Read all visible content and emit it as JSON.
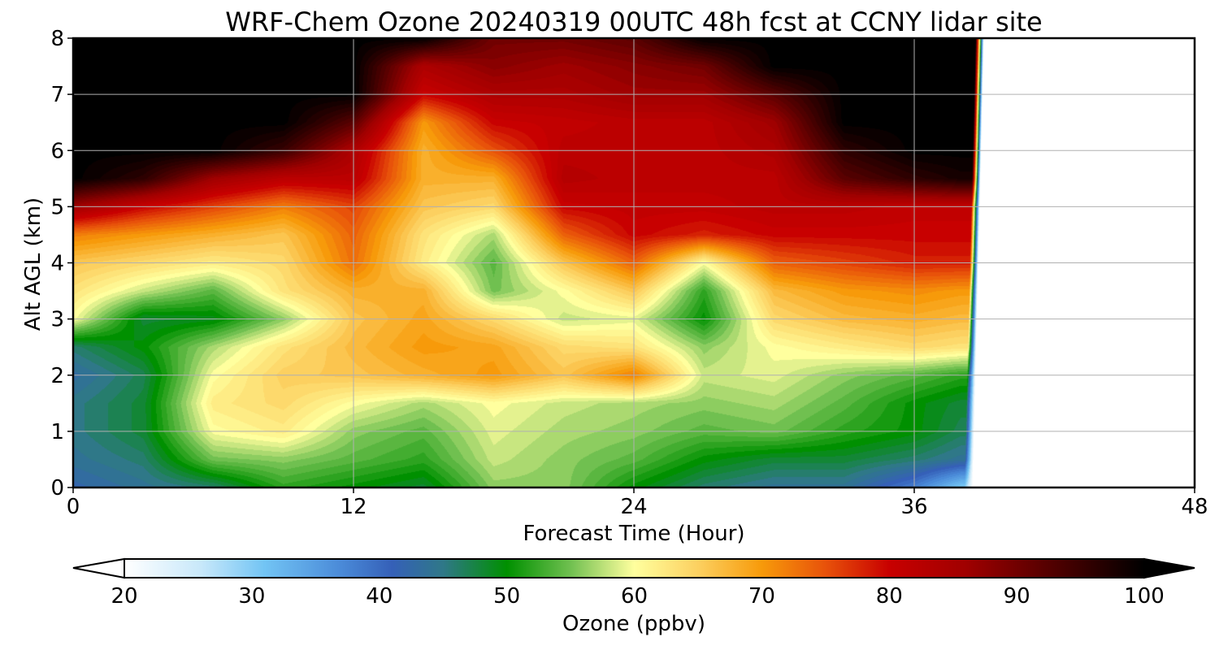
{
  "chart_data": {
    "type": "heatmap",
    "title": "WRF-Chem Ozone  20240319 00UTC 48h fcst at CCNY lidar site",
    "xlabel": "Forecast Time (Hour)",
    "ylabel": "Alt AGL (km)",
    "xlim": [
      0,
      48
    ],
    "ylim": [
      0,
      8
    ],
    "xticks": [
      0,
      12,
      24,
      36,
      48
    ],
    "yticks": [
      0,
      1,
      2,
      3,
      4,
      5,
      6,
      7,
      8
    ],
    "grid": true,
    "data_end_hour": 38.5,
    "x": [
      0,
      3,
      6,
      9,
      12,
      15,
      18,
      21,
      24,
      27,
      30,
      33,
      36,
      38
    ],
    "y": [
      0,
      0.5,
      1,
      1.5,
      2,
      2.5,
      3,
      3.5,
      4,
      4.5,
      5,
      5.5,
      6,
      6.5,
      7,
      7.5,
      8
    ],
    "z": [
      [
        42,
        44,
        46,
        52,
        50,
        48,
        56,
        56,
        50,
        46,
        44,
        44,
        38,
        30
      ],
      [
        44,
        46,
        55,
        56,
        54,
        52,
        58,
        56,
        54,
        50,
        48,
        48,
        46,
        44
      ],
      [
        45,
        48,
        60,
        62,
        56,
        54,
        59,
        57,
        56,
        54,
        55,
        52,
        50,
        47
      ],
      [
        45,
        48,
        62,
        64,
        60,
        57,
        60,
        58,
        57,
        56,
        57,
        54,
        50,
        48
      ],
      [
        43,
        47,
        60,
        65,
        66,
        68,
        70,
        66,
        72,
        58,
        59,
        56,
        54,
        52
      ],
      [
        46,
        50,
        57,
        63,
        67,
        70,
        69,
        64,
        63,
        56,
        60,
        62,
        64,
        63
      ],
      [
        60,
        48,
        49,
        56,
        66,
        69,
        64,
        58,
        59,
        50,
        64,
        67,
        68,
        67
      ],
      [
        63,
        58,
        54,
        63,
        68,
        68,
        55,
        60,
        66,
        52,
        67,
        70,
        71,
        70
      ],
      [
        66,
        64,
        62,
        64,
        73,
        62,
        54,
        66,
        74,
        60,
        74,
        76,
        78,
        78
      ],
      [
        72,
        70,
        68,
        66,
        74,
        63,
        57,
        74,
        80,
        78,
        80,
        80,
        80,
        80
      ],
      [
        86,
        80,
        76,
        72,
        76,
        66,
        64,
        80,
        81,
        81,
        82,
        82,
        81,
        81
      ],
      [
        100,
        96,
        86,
        82,
        82,
        68,
        68,
        83,
        82,
        82,
        82,
        92,
        96,
        98
      ],
      [
        100,
        100,
        100,
        95,
        84,
        68,
        75,
        82,
        82,
        82,
        84,
        96,
        100,
        100
      ],
      [
        100,
        100,
        100,
        100,
        92,
        70,
        80,
        81,
        82,
        82,
        86,
        100,
        100,
        100
      ],
      [
        100,
        100,
        100,
        100,
        100,
        80,
        84,
        84,
        86,
        86,
        92,
        100,
        100,
        100
      ],
      [
        100,
        100,
        100,
        100,
        100,
        84,
        88,
        86,
        88,
        90,
        100,
        100,
        100,
        100
      ],
      [
        100,
        100,
        100,
        100,
        100,
        100,
        90,
        90,
        92,
        100,
        100,
        100,
        100,
        100
      ]
    ],
    "colorbar": {
      "label": "Ozone  (ppbv)",
      "min": 20,
      "max": 100,
      "ticks": [
        20,
        30,
        40,
        50,
        60,
        70,
        80,
        90,
        100
      ],
      "extend": "both",
      "stops": [
        {
          "v": 20,
          "c": "#ffffff"
        },
        {
          "v": 26,
          "c": "#c8e8fa"
        },
        {
          "v": 31,
          "c": "#72c4f4"
        },
        {
          "v": 37,
          "c": "#4a8ad8"
        },
        {
          "v": 41,
          "c": "#3560b8"
        },
        {
          "v": 45,
          "c": "#2f7888"
        },
        {
          "v": 50,
          "c": "#009000"
        },
        {
          "v": 55,
          "c": "#70c050"
        },
        {
          "v": 58,
          "c": "#c8e680"
        },
        {
          "v": 60,
          "c": "#ffff9e"
        },
        {
          "v": 65,
          "c": "#fcd060"
        },
        {
          "v": 70,
          "c": "#f79a0a"
        },
        {
          "v": 75,
          "c": "#e8520a"
        },
        {
          "v": 80,
          "c": "#c80000"
        },
        {
          "v": 86,
          "c": "#a00000"
        },
        {
          "v": 92,
          "c": "#5a0000"
        },
        {
          "v": 100,
          "c": "#000000"
        }
      ]
    }
  }
}
